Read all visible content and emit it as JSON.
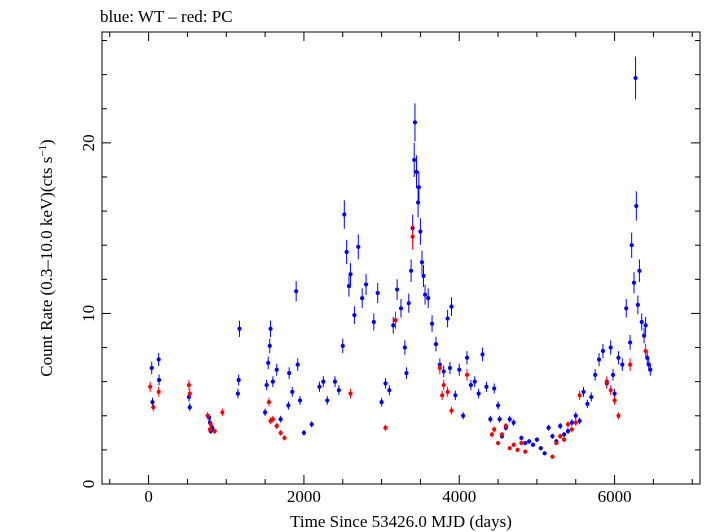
{
  "chart_data": {
    "type": "scatter",
    "title": "blue: WT – red: PC",
    "xlabel": "Time Since 53426.0 MJD (days)",
    "ylabel": "Count Rate (0.3–10.0 keV)(cts s",
    "ylabel_exponent": "−1",
    "ylabel_close": ")",
    "xlim": [
      -600,
      7100
    ],
    "ylim": [
      0,
      26.5
    ],
    "xticks": [
      0,
      2000,
      4000,
      6000
    ],
    "xtick_labels": [
      "0",
      "2000",
      "4000",
      "6000"
    ],
    "yticks": [
      0,
      10,
      20
    ],
    "ytick_labels": [
      "0",
      "10",
      "20"
    ],
    "grid": false,
    "series": [
      {
        "color": "#0000ff",
        "points": [
          [
            40,
            6.8
          ],
          [
            50,
            4.8
          ],
          [
            130,
            7.3
          ],
          [
            135,
            6.1
          ],
          [
            520,
            5.1
          ],
          [
            530,
            4.5
          ],
          [
            780,
            3.9
          ],
          [
            790,
            3.6
          ],
          [
            800,
            3.1
          ],
          [
            820,
            3.3
          ],
          [
            1150,
            5.3
          ],
          [
            1160,
            6.1
          ],
          [
            1170,
            9.1
          ],
          [
            1500,
            4.2
          ],
          [
            1520,
            5.8
          ],
          [
            1540,
            7.1
          ],
          [
            1560,
            8.1
          ],
          [
            1570,
            9.1
          ],
          [
            1600,
            6.0
          ],
          [
            1650,
            6.7
          ],
          [
            1700,
            3.8
          ],
          [
            1800,
            4.6
          ],
          [
            1810,
            6.5
          ],
          [
            1850,
            5.4
          ],
          [
            1900,
            11.3
          ],
          [
            1920,
            7.0
          ],
          [
            1950,
            4.9
          ],
          [
            2000,
            3.0
          ],
          [
            2100,
            3.5
          ],
          [
            2200,
            5.7
          ],
          [
            2250,
            6.0
          ],
          [
            2300,
            4.9
          ],
          [
            2400,
            6.0
          ],
          [
            2450,
            5.5
          ],
          [
            2500,
            8.1
          ],
          [
            2520,
            15.8
          ],
          [
            2550,
            13.6
          ],
          [
            2580,
            11.6
          ],
          [
            2600,
            12.3
          ],
          [
            2650,
            9.9
          ],
          [
            2700,
            13.9
          ],
          [
            2750,
            10.9
          ],
          [
            2800,
            11.7
          ],
          [
            2900,
            9.5
          ],
          [
            2950,
            11.2
          ],
          [
            3000,
            4.8
          ],
          [
            3050,
            5.9
          ],
          [
            3100,
            5.5
          ],
          [
            3150,
            9.3
          ],
          [
            3200,
            11.4
          ],
          [
            3250,
            10.3
          ],
          [
            3300,
            8.0
          ],
          [
            3320,
            6.5
          ],
          [
            3350,
            10.6
          ],
          [
            3380,
            12.5
          ],
          [
            3400,
            15.0
          ],
          [
            3420,
            19.0
          ],
          [
            3430,
            21.2
          ],
          [
            3450,
            18.3
          ],
          [
            3470,
            16.5
          ],
          [
            3480,
            17.4
          ],
          [
            3500,
            14.8
          ],
          [
            3520,
            13.0
          ],
          [
            3540,
            12.2
          ],
          [
            3560,
            11.1
          ],
          [
            3600,
            10.9
          ],
          [
            3650,
            9.4
          ],
          [
            3700,
            8.2
          ],
          [
            3750,
            7.0
          ],
          [
            3800,
            6.6
          ],
          [
            3850,
            9.7
          ],
          [
            3880,
            6.8
          ],
          [
            3900,
            10.4
          ],
          [
            3950,
            5.2
          ],
          [
            4000,
            6.7
          ],
          [
            4050,
            4.0
          ],
          [
            4100,
            7.4
          ],
          [
            4150,
            5.8
          ],
          [
            4200,
            6.0
          ],
          [
            4250,
            5.3
          ],
          [
            4300,
            7.6
          ],
          [
            4350,
            5.7
          ],
          [
            4400,
            3.8
          ],
          [
            4450,
            5.6
          ],
          [
            4500,
            4.6
          ],
          [
            4520,
            3.8
          ],
          [
            4550,
            2.8
          ],
          [
            4600,
            3.3
          ],
          [
            4650,
            3.8
          ],
          [
            4700,
            3.6
          ],
          [
            4800,
            2.7
          ],
          [
            4850,
            2.4
          ],
          [
            4900,
            2.5
          ],
          [
            4950,
            2.3
          ],
          [
            5000,
            2.6
          ],
          [
            5050,
            2.1
          ],
          [
            5100,
            1.8
          ],
          [
            5150,
            3.3
          ],
          [
            5200,
            2.8
          ],
          [
            5250,
            2.5
          ],
          [
            5300,
            3.4
          ],
          [
            5350,
            2.9
          ],
          [
            5400,
            3.1
          ],
          [
            5450,
            3.6
          ],
          [
            5500,
            4.0
          ],
          [
            5550,
            3.7
          ],
          [
            5600,
            5.4
          ],
          [
            5650,
            4.7
          ],
          [
            5700,
            5.1
          ],
          [
            5750,
            6.4
          ],
          [
            5800,
            7.3
          ],
          [
            5850,
            7.8
          ],
          [
            5900,
            5.9
          ],
          [
            5950,
            8.0
          ],
          [
            5980,
            6.4
          ],
          [
            6000,
            5.3
          ],
          [
            6050,
            7.4
          ],
          [
            6100,
            7.0
          ],
          [
            6150,
            10.3
          ],
          [
            6200,
            8.3
          ],
          [
            6220,
            14.0
          ],
          [
            6250,
            11.8
          ],
          [
            6270,
            23.8
          ],
          [
            6280,
            16.3
          ],
          [
            6300,
            10.5
          ],
          [
            6320,
            12.5
          ],
          [
            6350,
            9.5
          ],
          [
            6380,
            8.7
          ],
          [
            6400,
            9.3
          ],
          [
            6420,
            7.4
          ],
          [
            6440,
            7.0
          ],
          [
            6460,
            6.7
          ]
        ]
      },
      {
        "color": "#ff0000",
        "points": [
          [
            20,
            5.7
          ],
          [
            60,
            4.5
          ],
          [
            130,
            5.4
          ],
          [
            520,
            5.8
          ],
          [
            530,
            5.3
          ],
          [
            760,
            4.0
          ],
          [
            790,
            3.2
          ],
          [
            800,
            3.5
          ],
          [
            850,
            3.1
          ],
          [
            950,
            4.2
          ],
          [
            1550,
            4.8
          ],
          [
            1570,
            3.7
          ],
          [
            1600,
            3.8
          ],
          [
            1650,
            3.4
          ],
          [
            1700,
            3.0
          ],
          [
            1750,
            2.7
          ],
          [
            2600,
            5.3
          ],
          [
            3050,
            3.3
          ],
          [
            3180,
            9.6
          ],
          [
            3400,
            14.5
          ],
          [
            3750,
            6.8
          ],
          [
            3780,
            5.2
          ],
          [
            3800,
            5.8
          ],
          [
            3850,
            5.4
          ],
          [
            3900,
            4.3
          ],
          [
            4100,
            6.4
          ],
          [
            4420,
            2.9
          ],
          [
            4450,
            3.2
          ],
          [
            4500,
            2.4
          ],
          [
            4550,
            2.9
          ],
          [
            4600,
            3.4
          ],
          [
            4650,
            2.1
          ],
          [
            4700,
            2.3
          ],
          [
            4750,
            2.0
          ],
          [
            4800,
            2.4
          ],
          [
            4850,
            1.9
          ],
          [
            5200,
            1.6
          ],
          [
            5250,
            2.4
          ],
          [
            5300,
            2.8
          ],
          [
            5350,
            2.6
          ],
          [
            5400,
            3.5
          ],
          [
            5450,
            3.2
          ],
          [
            5500,
            3.6
          ],
          [
            5550,
            5.2
          ],
          [
            5900,
            6.0
          ],
          [
            5950,
            5.5
          ],
          [
            6000,
            4.9
          ],
          [
            6050,
            4.0
          ],
          [
            6200,
            7.0
          ],
          [
            6400,
            7.8
          ]
        ]
      }
    ]
  }
}
